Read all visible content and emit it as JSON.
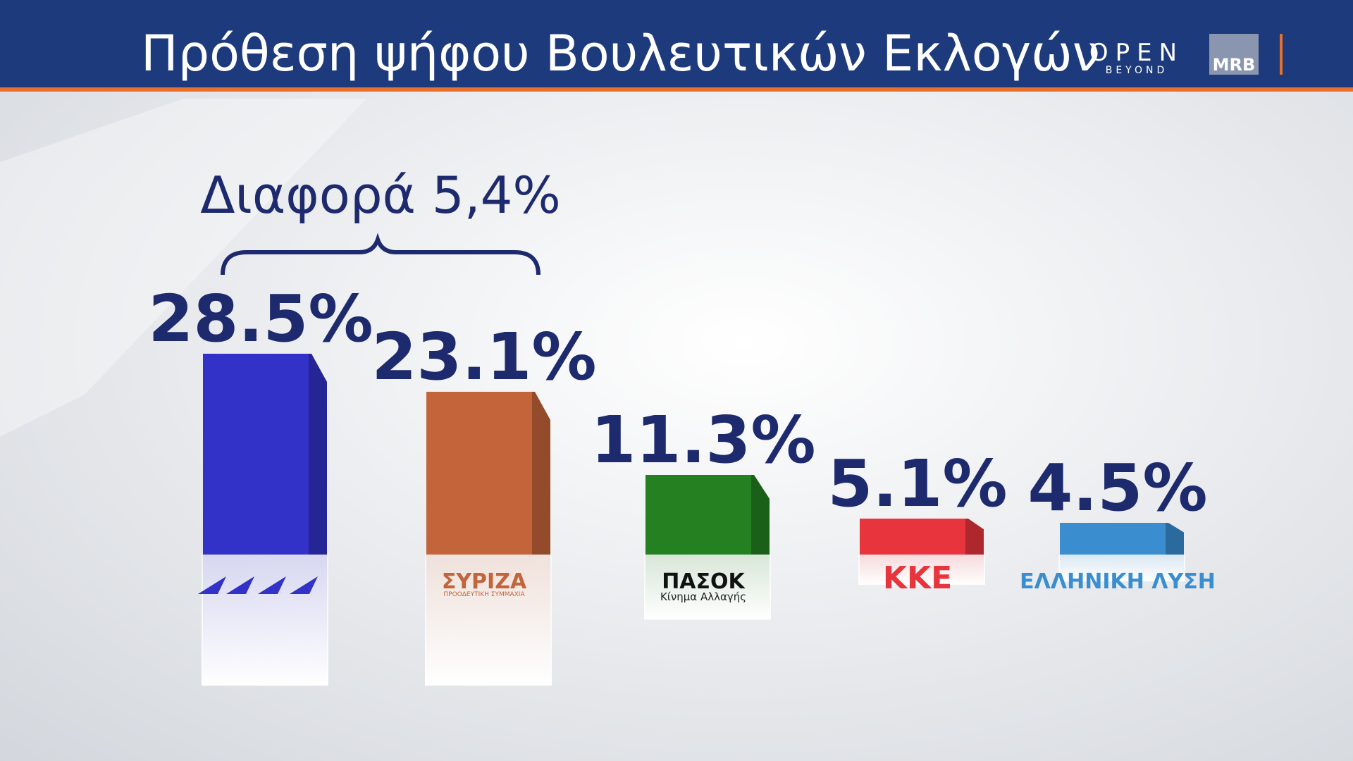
{
  "chart_data": {
    "type": "bar",
    "title": "Πρόθεση ψήφου Βουλευτικών Εκλογών",
    "annotation": "Διαφορά 5,4%",
    "categories": [
      null,
      "ΣΥΡΙΖΑ",
      "ΠΑΣΟΚ",
      "ΚΚΕ",
      "ΕΛΛΗΝΙΚΗ ΛΥΣΗ"
    ],
    "category_sublabels": [
      null,
      "ΠΡΟΟΔΕΥΤΙΚΗ ΣΥΜΜΑΧΙΑ",
      "Κίνημα Αλλαγής",
      null,
      null
    ],
    "values": [
      28.5,
      23.1,
      11.3,
      5.1,
      4.5
    ],
    "value_labels": [
      "28.5%",
      "23.1%",
      "11.3%",
      "5.1%",
      "4.5%"
    ],
    "colors": [
      "#3232c8",
      "#c4643a",
      "#248020",
      "#e8343c",
      "#3a8ed0"
    ]
  },
  "header_logos": {
    "channel": "OPEN",
    "channel_sub": "BEYOND",
    "pollster": "MRB"
  }
}
